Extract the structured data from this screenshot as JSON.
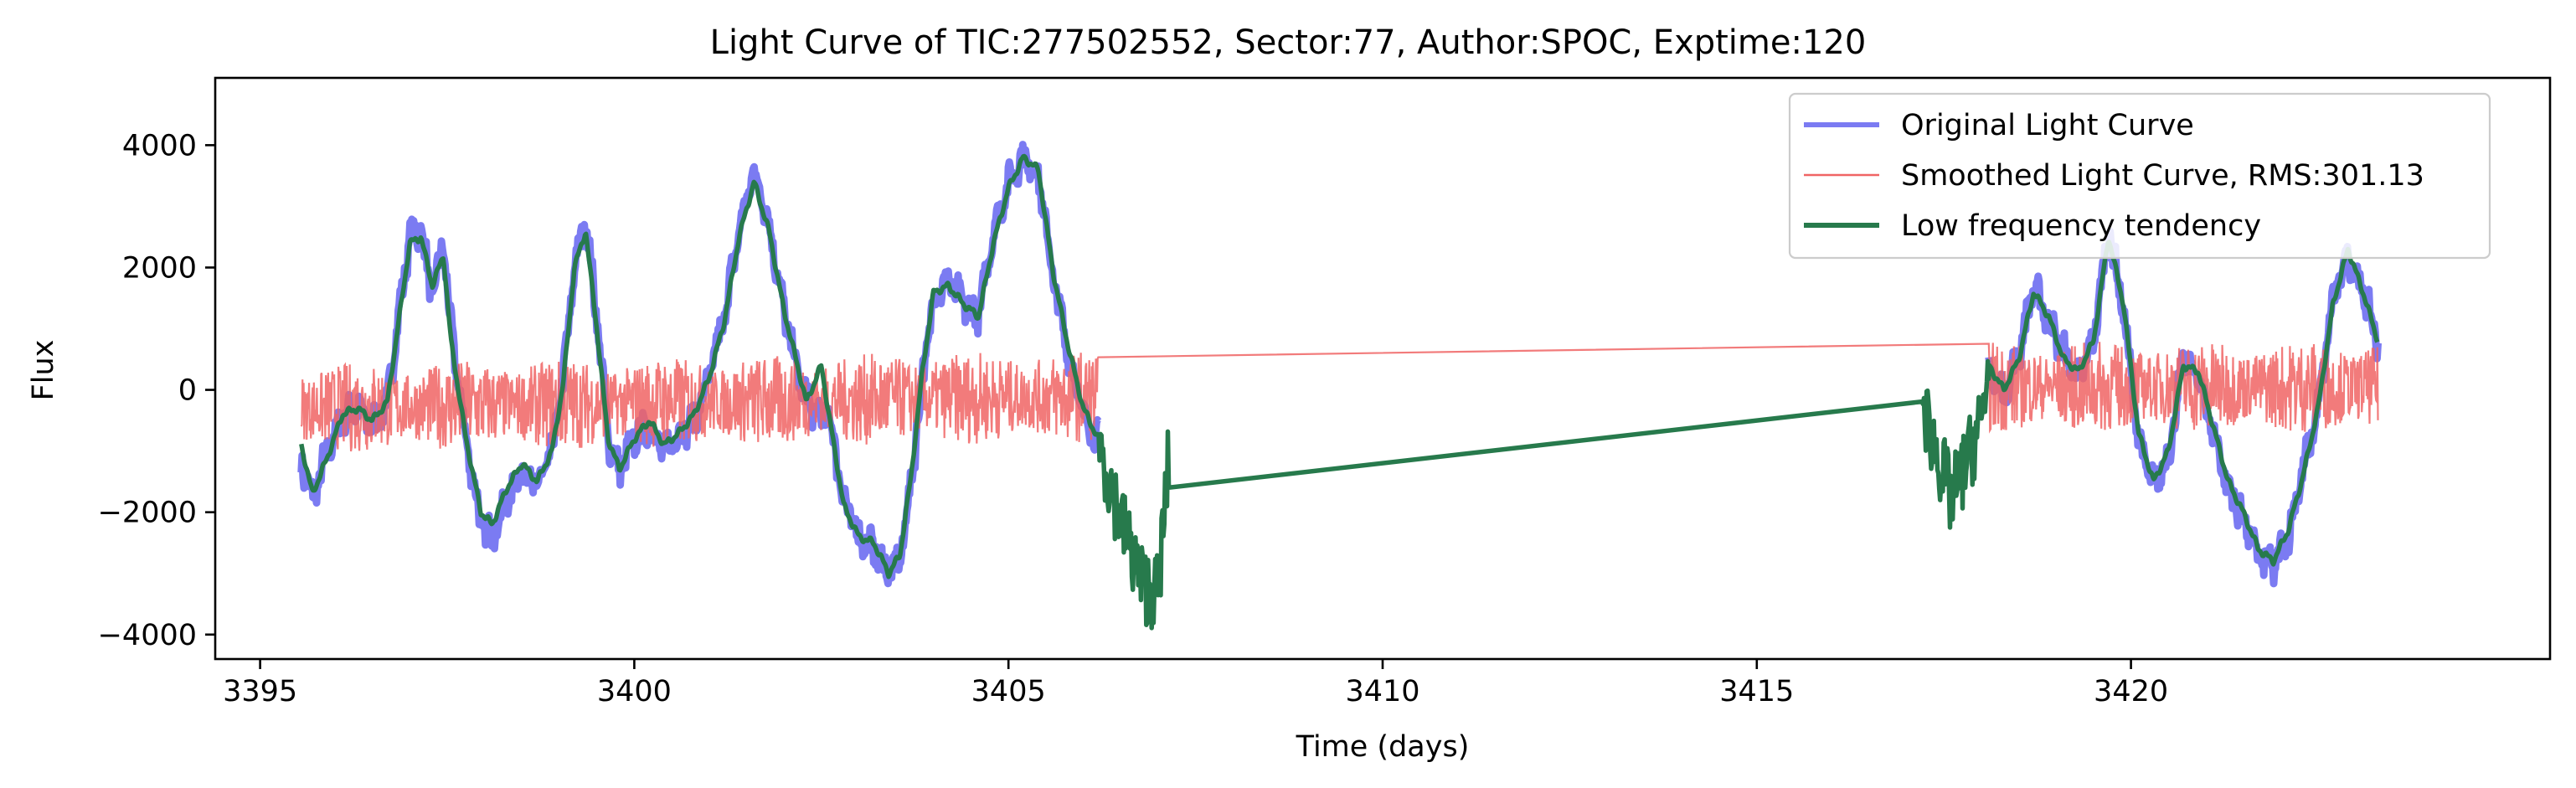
{
  "chart_data": {
    "type": "line",
    "title": "Light Curve of TIC:277502552, Sector:77, Author:SPOC, Exptime:120",
    "xlabel": "Time (days)",
    "ylabel": "Flux",
    "xlim": [
      3394.4,
      3425.6
    ],
    "ylim": [
      -4400,
      5100
    ],
    "xticks": [
      3395,
      3400,
      3405,
      3410,
      3415,
      3420
    ],
    "yticks": [
      -4000,
      -2000,
      0,
      2000,
      4000
    ],
    "grid": false,
    "legend_position": "top-right",
    "series": [
      {
        "name": "Original Light Curve",
        "color": "#7b7bf2",
        "style": "thick-band",
        "x": [
          3395.55,
          3395.7,
          3395.9,
          3396.1,
          3396.3,
          3396.5,
          3396.7,
          3396.85,
          3397.0,
          3397.15,
          3397.3,
          3397.45,
          3397.55,
          3397.75,
          3397.95,
          3398.1,
          3398.3,
          3398.5,
          3398.7,
          3398.9,
          3399.05,
          3399.2,
          3399.35,
          3399.5,
          3399.65,
          3399.8,
          3400.0,
          3400.2,
          3400.4,
          3400.6,
          3400.8,
          3401.0,
          3401.2,
          3401.4,
          3401.6,
          3401.8,
          3402.0,
          3402.2,
          3402.4,
          3402.6,
          3402.8,
          3403.0,
          3403.2,
          3403.4,
          3403.55,
          3403.7,
          3403.85,
          3404.0,
          3404.2,
          3404.4,
          3404.6,
          3404.8,
          3405.0,
          3405.2,
          3405.4,
          3405.6,
          3405.8,
          3406.0,
          3406.2,
          3418.1,
          3418.3,
          3418.5,
          3418.7,
          3418.9,
          3419.1,
          3419.3,
          3419.5,
          3419.7,
          3419.9,
          3420.1,
          3420.3,
          3420.5,
          3420.7,
          3420.9,
          3421.1,
          3421.3,
          3421.5,
          3421.7,
          3421.9,
          3422.1,
          3422.3,
          3422.5,
          3422.7,
          3422.9,
          3423.1,
          3423.3
        ],
        "y": [
          -1200,
          -1800,
          -1000,
          -500,
          -300,
          -600,
          -200,
          1200,
          2500,
          2600,
          1500,
          2400,
          1000,
          -800,
          -2200,
          -2400,
          -1800,
          -1300,
          -1600,
          -1000,
          200,
          2000,
          2800,
          1200,
          -800,
          -1300,
          -800,
          -600,
          -1000,
          -700,
          -500,
          200,
          1200,
          2600,
          3600,
          2700,
          1300,
          200,
          -400,
          -400,
          -1800,
          -2400,
          -2600,
          -3000,
          -2800,
          -1500,
          200,
          1500,
          1800,
          1400,
          1200,
          2600,
          3400,
          3800,
          3500,
          1800,
          600,
          -400,
          -800,
          300,
          -100,
          600,
          1700,
          1100,
          600,
          200,
          800,
          2600,
          1300,
          -800,
          -1600,
          -1100,
          500,
          200,
          -700,
          -1600,
          -2100,
          -2700,
          -2900,
          -2400,
          -1300,
          -300,
          1500,
          2200,
          1600,
          800
        ]
      },
      {
        "name": "Smoothed Light Curve, RMS:301.13",
        "color": "#f06464",
        "style": "noisy-band",
        "x": [
          3395.55,
          3406.2,
          3418.1,
          3423.3
        ],
        "y": [
          -300,
          -100,
          50,
          50
        ]
      },
      {
        "name": "Low frequency tendency",
        "color": "#277a4c",
        "style": "line",
        "x": [
          3395.55,
          3395.7,
          3395.9,
          3396.1,
          3396.3,
          3396.5,
          3396.7,
          3396.85,
          3397.0,
          3397.15,
          3397.3,
          3397.45,
          3397.55,
          3397.75,
          3397.95,
          3398.1,
          3398.3,
          3398.5,
          3398.7,
          3398.9,
          3399.05,
          3399.2,
          3399.35,
          3399.5,
          3399.65,
          3399.8,
          3400.0,
          3400.2,
          3400.4,
          3400.6,
          3400.8,
          3401.0,
          3401.2,
          3401.4,
          3401.6,
          3401.8,
          3402.0,
          3402.2,
          3402.3,
          3402.5,
          3402.6,
          3402.8,
          3403.0,
          3403.2,
          3403.4,
          3403.55,
          3403.7,
          3403.85,
          3404.0,
          3404.2,
          3404.4,
          3404.6,
          3404.8,
          3405.0,
          3405.2,
          3405.4,
          3405.6,
          3405.8,
          3406.0,
          3406.2,
          3406.4,
          3406.6,
          3406.8,
          3407.0,
          3407.15,
          3417.2,
          3417.4,
          3417.6,
          3417.8,
          3418.0,
          3418.1,
          3418.3,
          3418.5,
          3418.7,
          3418.9,
          3419.1,
          3419.3,
          3419.5,
          3419.7,
          3419.9,
          3420.1,
          3420.3,
          3420.5,
          3420.7,
          3420.9,
          3421.1,
          3421.3,
          3421.5,
          3421.7,
          3421.9,
          3422.1,
          3422.3,
          3422.5,
          3422.7,
          3422.9,
          3423.1,
          3423.3
        ],
        "y": [
          -900,
          -1700,
          -1100,
          -400,
          -300,
          -500,
          -200,
          1100,
          2400,
          2500,
          1700,
          2200,
          800,
          -800,
          -2000,
          -2200,
          -1600,
          -1200,
          -1500,
          -1000,
          100,
          2000,
          2600,
          1000,
          -800,
          -1300,
          -800,
          -500,
          -900,
          -700,
          -400,
          200,
          1100,
          2500,
          3400,
          2600,
          1300,
          300,
          -200,
          400,
          -400,
          -1900,
          -2400,
          -2500,
          -3000,
          -2700,
          -1400,
          300,
          1600,
          1700,
          1400,
          1200,
          2400,
          3300,
          3800,
          3600,
          1900,
          700,
          -300,
          -800,
          -1700,
          -2500,
          -3200,
          -3300,
          -1000,
          -200,
          -1000,
          -1800,
          -1200,
          -500,
          400,
          0,
          500,
          1600,
          1200,
          500,
          300,
          800,
          2500,
          1400,
          -700,
          -1500,
          -1000,
          400,
          300,
          -600,
          -1500,
          -2000,
          -2600,
          -2800,
          -2300,
          -1400,
          -300,
          1400,
          2300,
          1600,
          800
        ]
      }
    ],
    "legend": [
      {
        "label": "Original Light Curve",
        "color": "#7b7bf2"
      },
      {
        "label": "Smoothed Light Curve, RMS:301.13",
        "color": "#f06464"
      },
      {
        "label": "Low frequency tendency",
        "color": "#277a4c"
      }
    ]
  }
}
